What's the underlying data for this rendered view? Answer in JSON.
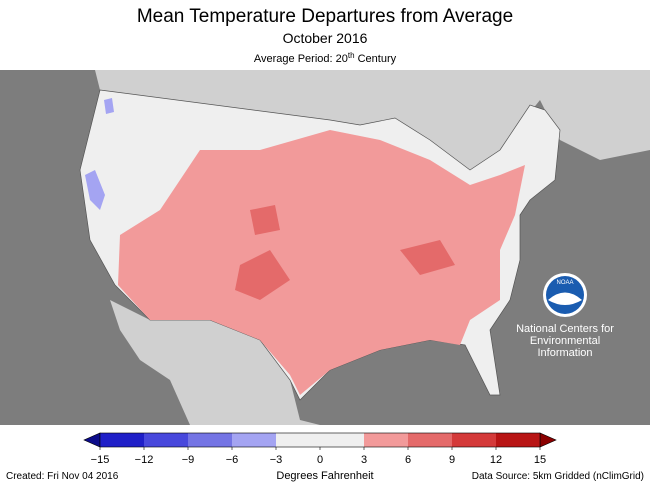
{
  "header": {
    "title": "Mean Temperature Departures from Average",
    "subtitle": "October 2016",
    "period": {
      "prefix": "Average Period: 20",
      "sup": "th",
      "suffix": " Century"
    }
  },
  "logo": {
    "name": "NOAA",
    "lines": [
      "National Centers for",
      "Environmental",
      "Information"
    ]
  },
  "colorbar": {
    "range": [
      -15,
      15
    ],
    "under_color": "#0c0c8a",
    "over_color": "#8a0000",
    "bin_colors": [
      "#1f1fc8",
      "#4848dc",
      "#7474e4",
      "#a4a4f2",
      "#efefef",
      "#efefef",
      "#f29a9a",
      "#e46a6a",
      "#d43a3a",
      "#b81414"
    ],
    "ticks": [
      {
        "value": -15,
        "label": "−15"
      },
      {
        "value": -12,
        "label": "−12"
      },
      {
        "value": -9,
        "label": "−9"
      },
      {
        "value": -6,
        "label": "−6"
      },
      {
        "value": -3,
        "label": "−3"
      },
      0,
      3,
      6,
      9,
      12,
      15
    ],
    "label": "Degrees Fahrenheit"
  },
  "footer": {
    "created": "Created: Fri Nov 04 2016",
    "source": "Data Source: 5km Gridded (nClimGrid)"
  }
}
